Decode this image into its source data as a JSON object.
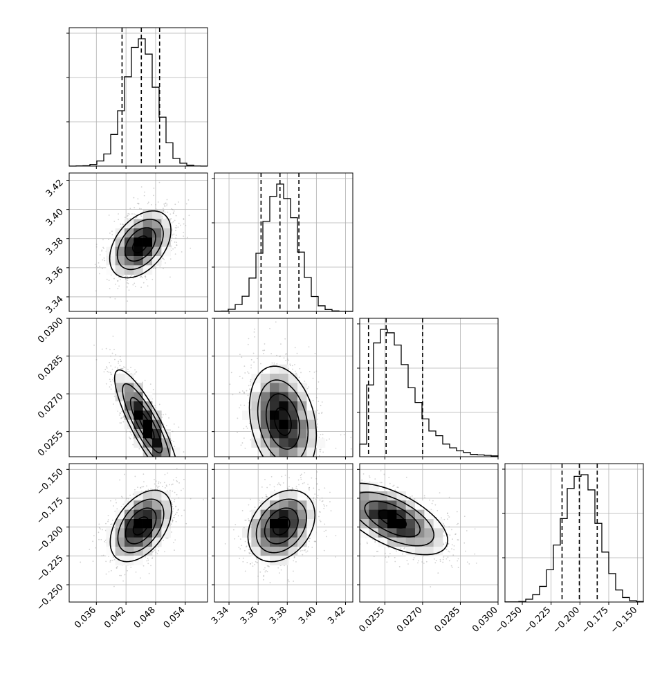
{
  "chart_data": {
    "type": "corner",
    "grid": true,
    "colors": {
      "points": "#9a9a9a",
      "density": "#000000",
      "lines": "#000000"
    },
    "params": [
      {
        "range": [
          0.0305,
          0.0585
        ],
        "ticks": [
          0.036,
          0.042,
          0.048,
          0.054
        ],
        "tick_labels": [
          "0.036",
          "0.042",
          "0.048",
          "0.054"
        ],
        "mean": 0.045,
        "sd": 0.0031,
        "quantiles": [
          0.0412,
          0.0451,
          0.0488
        ],
        "hist_max": 0.285
      },
      {
        "range": [
          3.33,
          3.425
        ],
        "ticks": [
          3.34,
          3.36,
          3.38,
          3.4,
          3.42
        ],
        "tick_labels": [
          "3.34",
          "3.36",
          "3.38",
          "3.40",
          "3.42"
        ],
        "mean": 3.375,
        "sd": 0.0115,
        "quantiles": [
          3.362,
          3.375,
          3.388
        ],
        "hist_max": 0.17
      },
      {
        "range": [
          0.0245,
          0.03
        ],
        "ticks": [
          0.0255,
          0.027,
          0.0285,
          0.03
        ],
        "tick_labels": [
          "0.0255",
          "0.0270",
          "0.0285",
          "0.0300"
        ],
        "mean": 0.0258,
        "sd": 0.0011,
        "quantiles": [
          0.02485,
          0.02555,
          0.027
        ],
        "hist_max": 0.37
      },
      {
        "range": [
          -0.265,
          -0.145
        ],
        "ticks": [
          -0.25,
          -0.225,
          -0.2,
          -0.175,
          -0.15
        ],
        "tick_labels": [
          "−0.250",
          "−0.225",
          "−0.200",
          "−0.175",
          "−0.150"
        ],
        "mean": -0.2,
        "sd": 0.0155,
        "quantiles": [
          -0.2155,
          -0.2005,
          -0.185
        ],
        "hist_max": 0.365
      }
    ],
    "pairs": [
      {
        "row": 1,
        "col": 0,
        "center": [
          0.0449,
          3.376
        ],
        "sd": [
          0.0031,
          0.0115
        ],
        "rho": 0.42
      },
      {
        "row": 2,
        "col": 0,
        "center": [
          0.0461,
          0.02575
        ],
        "sd": [
          0.0032,
          0.0011
        ],
        "rho": -0.85
      },
      {
        "row": 2,
        "col": 1,
        "center": [
          3.377,
          0.0259
        ],
        "sd": [
          0.0115,
          0.0011
        ],
        "rho": -0.25
      },
      {
        "row": 3,
        "col": 0,
        "center": [
          0.045,
          -0.199
        ],
        "sd": [
          0.0031,
          0.0155
        ],
        "rho": 0.45
      },
      {
        "row": 3,
        "col": 1,
        "center": [
          3.376,
          -0.199
        ],
        "sd": [
          0.0115,
          0.0155
        ],
        "rho": 0.3
      },
      {
        "row": 3,
        "col": 2,
        "center": [
          0.0258,
          -0.193
        ],
        "sd": [
          0.0011,
          0.0155
        ],
        "rho": -0.6
      }
    ]
  }
}
